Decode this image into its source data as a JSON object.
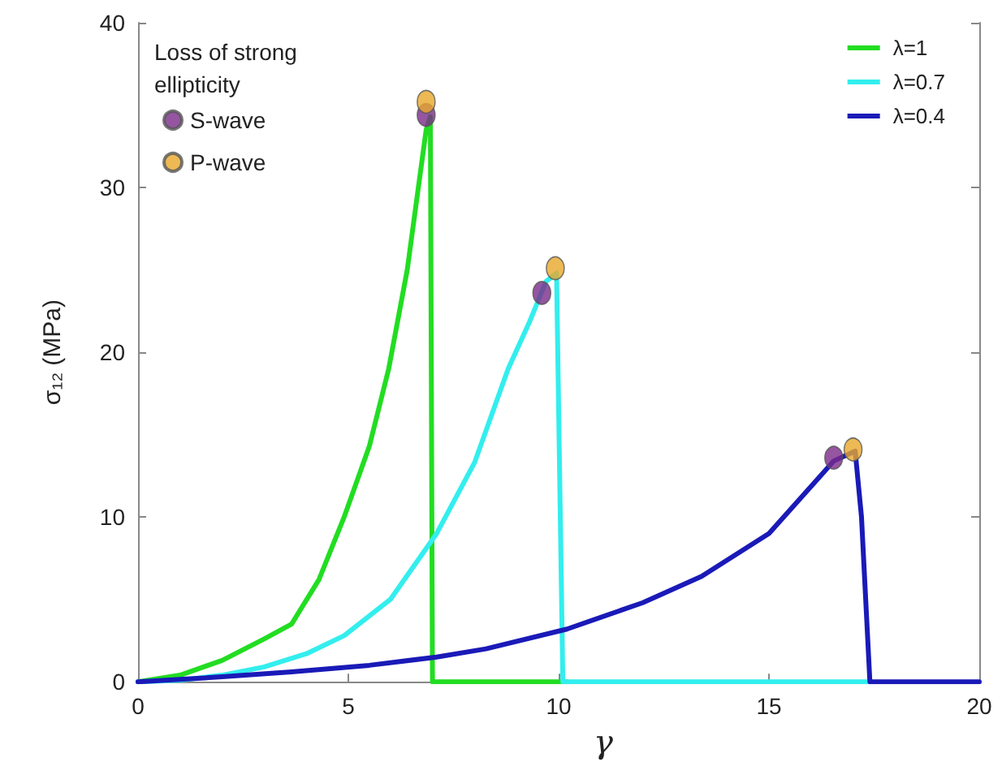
{
  "chart_data": {
    "type": "line",
    "xlabel": "γ",
    "ylabel": "σ₁₂ (MPa)",
    "legend_title": "Loss of strong ellipticity",
    "legend": "top right",
    "grid": false,
    "marker": "none",
    "line_style": "solid",
    "xlim": [
      0,
      20
    ],
    "xticks": [
      0,
      5,
      10,
      15,
      20
    ],
    "ylim": [
      0,
      40
    ],
    "yticks": [
      0,
      10,
      20,
      30,
      40
    ],
    "series": [
      {
        "name": "λ=1",
        "color": "#22dd22",
        "x": [
          0,
          1,
          2,
          3,
          3.65,
          4.3,
          4.9,
          5.5,
          5.96,
          6.4,
          6.85,
          6.95,
          7.0,
          10.2
        ],
        "values": [
          0,
          0.4,
          1.3,
          2.6,
          3.5,
          6.2,
          10,
          14.3,
          19,
          25,
          33.5,
          34.3,
          0,
          0
        ]
      },
      {
        "name": "λ=0.7",
        "color": "#33eeee",
        "x": [
          0,
          1,
          2,
          3,
          4,
          4.9,
          6,
          7.1,
          8,
          8.8,
          9.3,
          9.7,
          9.95,
          10.1,
          17.4
        ],
        "values": [
          0,
          0.1,
          0.4,
          0.9,
          1.7,
          2.8,
          5,
          9,
          13.3,
          19,
          21.8,
          24.3,
          24.8,
          0,
          0
        ]
      },
      {
        "name": "λ=0.4",
        "color": "#1a1ab8",
        "x": [
          0,
          2,
          3.65,
          5.5,
          7.1,
          8.27,
          10.2,
          12,
          13.4,
          15,
          16.54,
          17.05,
          17.2,
          17.4,
          20
        ],
        "values": [
          0,
          0.3,
          0.6,
          1.0,
          1.5,
          2.0,
          3.2,
          4.8,
          6.4,
          9.0,
          13.4,
          14.0,
          10,
          0,
          0
        ]
      },
      {
        "name": "S-wave",
        "type": "scatter",
        "marker": "circle",
        "color": "#7b2a8a",
        "x": [
          6.85,
          9.6,
          16.54
        ],
        "values": [
          34.4,
          23.6,
          13.6
        ]
      },
      {
        "name": "P-wave",
        "type": "scatter",
        "marker": "circle",
        "color": "#e8a82a",
        "x": [
          6.85,
          9.92,
          17.0
        ],
        "values": [
          35.2,
          25.1,
          14.1
        ]
      }
    ]
  }
}
